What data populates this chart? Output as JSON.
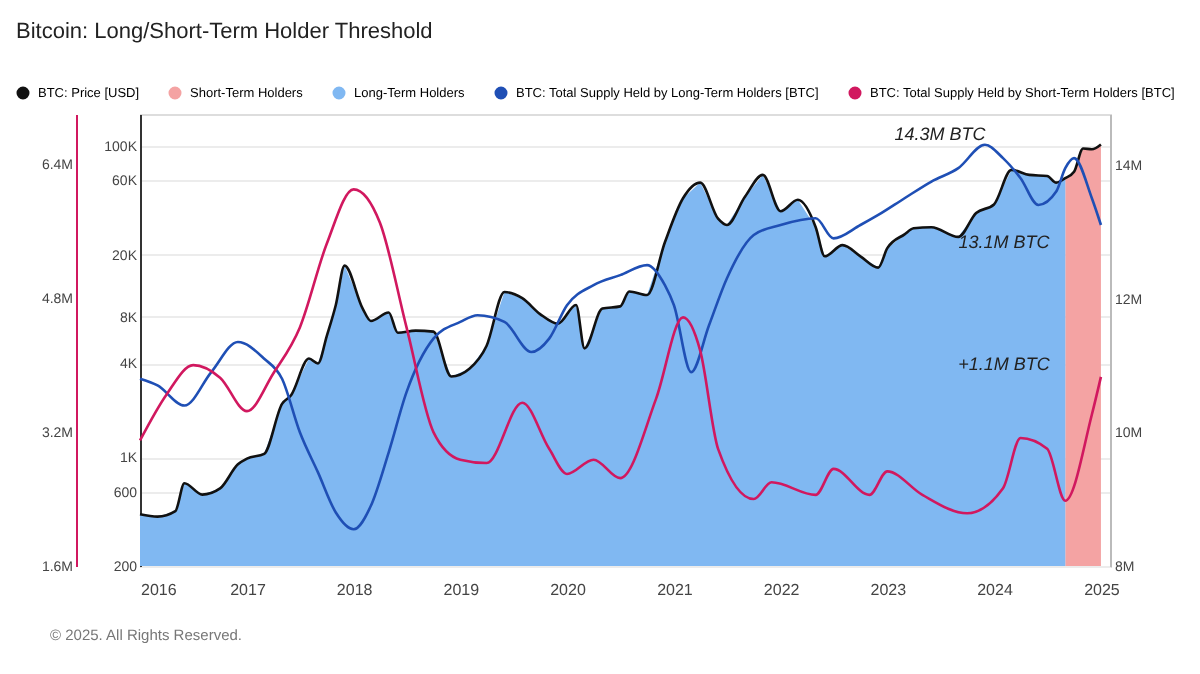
{
  "chart_data": {
    "type": "line",
    "title": "Bitcoin: Long/Short-Term Holder Threshold",
    "xlim": [
      "2016-01-01",
      "2025-02-01"
    ],
    "xticks": [
      "2016",
      "2017",
      "2018",
      "2019",
      "2020",
      "2021",
      "2022",
      "2023",
      "2024",
      "2025"
    ],
    "ylim": [
      200,
      160000
    ],
    "yticks": [
      {
        "value": 200,
        "label": "200"
      },
      {
        "value": 600,
        "label": "600"
      },
      {
        "value": 1000,
        "label": "1K"
      },
      {
        "value": 4000,
        "label": "4K"
      },
      {
        "value": 8000,
        "label": "8K"
      },
      {
        "value": 20000,
        "label": "20K"
      },
      {
        "value": 60000,
        "label": "60K"
      },
      {
        "value": 100000,
        "label": "100K"
      }
    ],
    "log": "y",
    "y2lim": [
      8,
      14.76
    ],
    "y2ticks": [
      {
        "value": 8,
        "label": "8M"
      },
      {
        "value": 10,
        "label": "10M"
      },
      {
        "value": 12,
        "label": "12M"
      },
      {
        "value": 14,
        "label": "14M"
      }
    ],
    "y3lim": [
      1.6,
      7.0
    ],
    "y3ticks": [
      {
        "value": 1.6,
        "label": "1.6M"
      },
      {
        "value": 3.2,
        "label": "3.2M"
      },
      {
        "value": 4.8,
        "label": "4.8M"
      },
      {
        "value": 6.4,
        "label": "6.4M"
      }
    ],
    "grid": "y",
    "legend": "top",
    "series": [
      {
        "name": "BTC: Price [USD]",
        "color": "#111111",
        "x": [
          "2016-01",
          "2016-03",
          "2016-05",
          "2016-06",
          "2016-08",
          "2016-10",
          "2016-12",
          "2017-01",
          "2017-03",
          "2017-05",
          "2017-06",
          "2017-08",
          "2017-09",
          "2017-10",
          "2017-11",
          "2017-12",
          "2018-02",
          "2018-03",
          "2018-05",
          "2018-06",
          "2018-08",
          "2018-10",
          "2018-12",
          "2019-02",
          "2019-04",
          "2019-06",
          "2019-08",
          "2019-10",
          "2019-12",
          "2020-02",
          "2020-03",
          "2020-05",
          "2020-07",
          "2020-08",
          "2020-10",
          "2020-12",
          "2021-02",
          "2021-04",
          "2021-06",
          "2021-07",
          "2021-09",
          "2021-11",
          "2022-01",
          "2022-03",
          "2022-05",
          "2022-06",
          "2022-08",
          "2022-10",
          "2022-12",
          "2023-01",
          "2023-03",
          "2023-04",
          "2023-06",
          "2023-09",
          "2023-11",
          "2024-01",
          "2024-03",
          "2024-05",
          "2024-07",
          "2024-08",
          "2024-09",
          "2024-10",
          "2024-11",
          "2024-12",
          "2025-01"
        ],
        "values": [
          430,
          415,
          450,
          680,
          575,
          630,
          900,
          980,
          1050,
          2200,
          2500,
          4300,
          4000,
          6000,
          9500,
          17000,
          9000,
          7500,
          8500,
          6300,
          6500,
          6400,
          3300,
          3700,
          5200,
          11500,
          10500,
          8300,
          7200,
          9500,
          5000,
          9000,
          9300,
          11600,
          11000,
          24000,
          46000,
          58000,
          34000,
          31000,
          47000,
          65000,
          38000,
          45000,
          30000,
          19500,
          23000,
          19500,
          16500,
          22000,
          27000,
          29500,
          30000,
          26000,
          37000,
          42000,
          70000,
          65000,
          64000,
          58000,
          62000,
          68000,
          96000,
          95000,
          102000
        ]
      },
      {
        "name": "Short-Term Holders",
        "type": "area",
        "color": "#f4a3a3",
        "x": [
          "2024-09",
          "2024-10",
          "2024-11",
          "2024-12",
          "2025-01"
        ],
        "values": [
          62000,
          68000,
          96000,
          95000,
          102000
        ]
      },
      {
        "name": "Long-Term Holders",
        "type": "area",
        "color": "#80b8f2",
        "x": [
          "2016-01",
          "2016-03",
          "2016-05",
          "2016-06",
          "2016-08",
          "2016-10",
          "2016-12",
          "2017-01",
          "2017-03",
          "2017-05",
          "2017-06",
          "2017-08",
          "2017-09",
          "2017-10",
          "2017-11",
          "2017-12",
          "2018-02",
          "2018-03",
          "2018-05",
          "2018-06",
          "2018-08",
          "2018-10",
          "2018-12",
          "2019-02",
          "2019-04",
          "2019-06",
          "2019-08",
          "2019-10",
          "2019-12",
          "2020-02",
          "2020-03",
          "2020-05",
          "2020-07",
          "2020-08",
          "2020-10",
          "2020-12",
          "2021-02",
          "2021-04",
          "2021-06",
          "2021-07",
          "2021-09",
          "2021-11",
          "2022-01",
          "2022-03",
          "2022-05",
          "2022-06",
          "2022-08",
          "2022-10",
          "2022-12",
          "2023-01",
          "2023-03",
          "2023-04",
          "2023-06",
          "2023-09",
          "2023-11",
          "2024-01",
          "2024-03",
          "2024-05",
          "2024-07",
          "2024-08",
          "2024-09"
        ],
        "values": [
          430,
          415,
          450,
          680,
          575,
          630,
          900,
          980,
          1050,
          2200,
          2500,
          4300,
          4000,
          6000,
          9500,
          17000,
          9000,
          7500,
          8500,
          6300,
          6500,
          6400,
          3300,
          3700,
          5200,
          11500,
          10500,
          8300,
          7200,
          9500,
          5000,
          9000,
          9300,
          11600,
          11000,
          24000,
          46000,
          58000,
          34000,
          31000,
          47000,
          65000,
          38000,
          45000,
          30000,
          19500,
          23000,
          19500,
          16500,
          22000,
          27000,
          29500,
          30000,
          26000,
          37000,
          42000,
          70000,
          65000,
          64000,
          58000,
          62000
        ]
      },
      {
        "name": "BTC: Total Supply Held by Long-Term Holders [BTC]",
        "type": "line",
        "axis": "y2",
        "color": "#1f4fb5",
        "x": [
          "2016-01",
          "2016-03",
          "2016-06",
          "2016-09",
          "2016-12",
          "2017-03",
          "2017-05",
          "2017-07",
          "2017-09",
          "2017-11",
          "2018-01",
          "2018-03",
          "2018-05",
          "2018-07",
          "2018-10",
          "2019-01",
          "2019-03",
          "2019-06",
          "2019-09",
          "2019-11",
          "2020-01",
          "2020-04",
          "2020-07",
          "2020-10",
          "2020-12",
          "2021-01",
          "2021-03",
          "2021-05",
          "2021-07",
          "2021-10",
          "2022-01",
          "2022-05",
          "2022-07",
          "2022-10",
          "2022-12",
          "2023-03",
          "2023-06",
          "2023-09",
          "2023-12",
          "2024-02",
          "2024-04",
          "2024-06",
          "2024-08",
          "2024-09",
          "2024-10",
          "2024-12",
          "2025-01"
        ],
        "values": [
          10.8,
          10.7,
          10.4,
          10.9,
          11.35,
          11.1,
          10.8,
          10.0,
          9.4,
          8.8,
          8.55,
          8.9,
          9.7,
          10.6,
          11.4,
          11.65,
          11.75,
          11.65,
          11.2,
          11.4,
          11.9,
          12.2,
          12.35,
          12.5,
          12.2,
          11.9,
          10.9,
          11.6,
          12.3,
          12.95,
          13.1,
          13.2,
          12.9,
          13.1,
          13.25,
          13.5,
          13.75,
          13.95,
          14.3,
          14.1,
          13.8,
          13.4,
          13.6,
          13.95,
          14.1,
          13.5,
          13.1
        ]
      },
      {
        "name": "BTC: Total Supply Held by Short-Term Holders [BTC]",
        "type": "line",
        "axis": "y3",
        "color": "#d1185f",
        "x": [
          "2016-01",
          "2016-04",
          "2016-07",
          "2016-10",
          "2017-01",
          "2017-04",
          "2017-07",
          "2017-10",
          "2018-01",
          "2018-04",
          "2018-07",
          "2018-10",
          "2019-01",
          "2019-04",
          "2019-08",
          "2019-11",
          "2020-01",
          "2020-04",
          "2020-07",
          "2020-11",
          "2021-02",
          "2021-04",
          "2021-06",
          "2021-10",
          "2021-12",
          "2022-05",
          "2022-07",
          "2022-11",
          "2023-01",
          "2023-05",
          "2023-10",
          "2024-02",
          "2024-04",
          "2024-07",
          "2024-09",
          "2024-12",
          "2025-01"
        ],
        "values": [
          3.1,
          3.65,
          4.0,
          3.85,
          3.45,
          3.9,
          4.45,
          5.45,
          6.1,
          5.7,
          4.45,
          3.2,
          2.87,
          2.83,
          3.55,
          3.0,
          2.7,
          2.87,
          2.65,
          3.6,
          4.57,
          4.17,
          3.0,
          2.4,
          2.6,
          2.45,
          2.76,
          2.45,
          2.73,
          2.45,
          2.23,
          2.53,
          3.13,
          3.0,
          2.38,
          3.41,
          3.86
        ]
      }
    ],
    "annotations": [
      "14.3M BTC",
      "13.1M BTC",
      "+1.1M BTC",
      "© 2025. All Rights Reserved."
    ]
  }
}
